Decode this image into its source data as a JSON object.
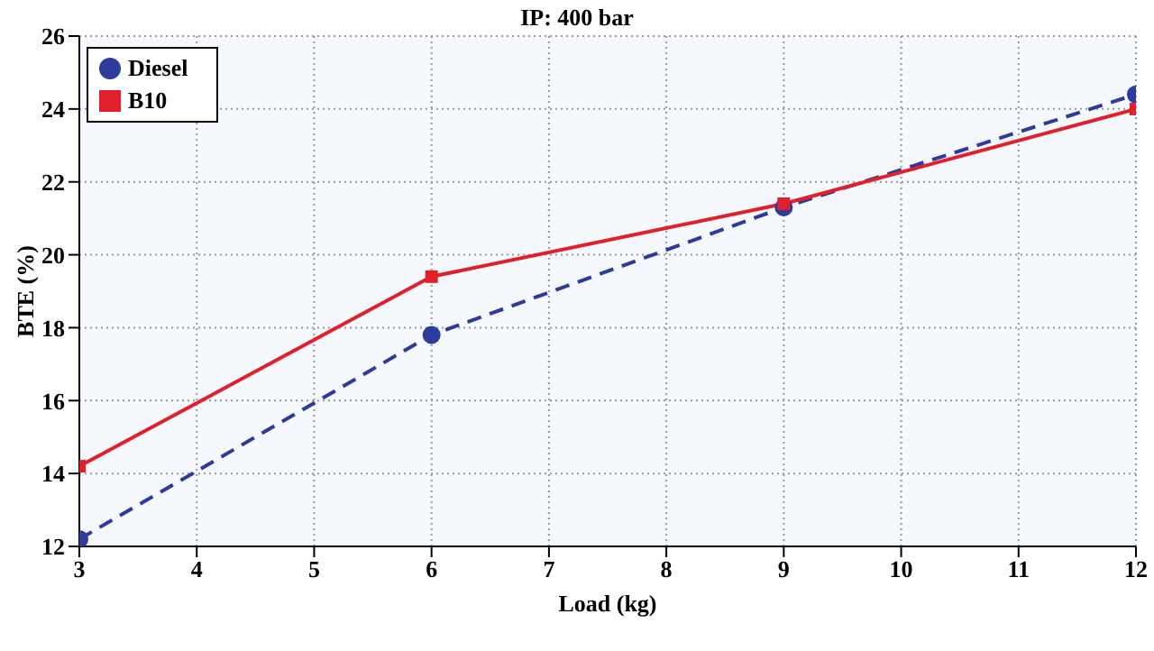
{
  "chart_data": {
    "type": "line",
    "title": "IP: 400 bar",
    "xlabel": "Load (kg)",
    "ylabel": "BTE (%)",
    "x": [
      3,
      6,
      9,
      12
    ],
    "series": [
      {
        "name": "Diesel",
        "color": "#2e3a9c",
        "values": [
          12.2,
          17.8,
          21.3,
          24.4
        ],
        "line_style": "dashed",
        "marker": "circle"
      },
      {
        "name": "B10",
        "color": "#e0202a",
        "values": [
          14.2,
          19.4,
          21.4,
          24.0
        ],
        "line_style": "solid",
        "marker": "square"
      }
    ],
    "xlim": [
      3,
      12
    ],
    "xticks": [
      3,
      4,
      5,
      6,
      7,
      8,
      9,
      10,
      11,
      12
    ],
    "ylim": [
      12,
      26
    ],
    "yticks": [
      12,
      14,
      16,
      18,
      20,
      22,
      24,
      26
    ],
    "grid": true,
    "legend": "top left"
  }
}
